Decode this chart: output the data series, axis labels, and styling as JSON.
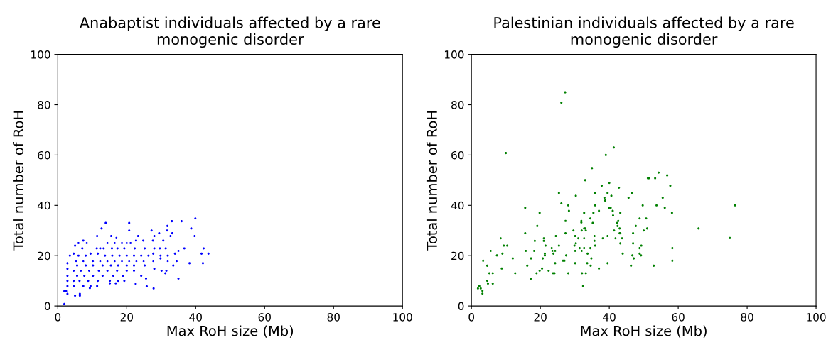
{
  "chart_data": [
    {
      "type": "scatter",
      "title": "Anabaptist individuals affected by a rare\nmonogenic disorder",
      "xlabel": "Max RoH size (Mb)",
      "ylabel": "Total number of RoH",
      "xlim": [
        0,
        100
      ],
      "ylim": [
        0,
        100
      ],
      "xticks": [
        0,
        20,
        40,
        60,
        80,
        100
      ],
      "yticks": [
        0,
        20,
        40,
        60,
        80,
        100
      ],
      "grid": false,
      "marker": "circle",
      "series": [
        {
          "color": "#0000ff",
          "x": [
            39.9,
            35.9,
            33.1,
            13.9,
            20.7,
            31.8,
            38.7,
            12.7,
            20.7,
            27.2,
            31.7,
            29.4,
            39.7,
            11.4,
            23.3,
            28.0,
            32.7,
            15.5,
            17.0,
            7.4,
            33.2,
            5.0,
            6.0,
            8.4,
            14.4,
            16.5,
            18.6,
            20.0,
            21.1,
            22.7,
            24.8,
            27.6,
            30.6,
            7.1,
            11.3,
            12.3,
            13.3,
            15.7,
            17.3,
            19.3,
            22.3,
            25.2,
            28.0,
            29.6,
            31.3,
            36.7,
            42.3,
            35.0,
            41.7,
            43.7,
            3.5,
            4.6,
            6.0,
            8.1,
            9.5,
            11.6,
            13.7,
            15.8,
            17.9,
            20.0,
            22.1,
            24.2,
            26.3,
            27.7,
            29.8,
            31.9,
            34.0,
            2.8,
            5.3,
            7.4,
            10.2,
            12.3,
            14.4,
            16.5,
            18.6,
            20.7,
            22.8,
            24.9,
            27.7,
            29.8,
            31.9,
            34.5,
            38.2,
            42.1,
            5.6,
            8.1,
            10.2,
            13.0,
            15.4,
            17.5,
            20.0,
            22.1,
            25.2,
            33.5,
            2.8,
            4.6,
            6.7,
            9.1,
            11.9,
            14.4,
            17.2,
            20.0,
            22.1,
            28.0,
            30.1,
            31.5,
            2.8,
            5.6,
            7.7,
            10.2,
            13.0,
            16.1,
            18.9,
            24.2,
            25.6,
            31.2,
            2.8,
            4.6,
            6.3,
            8.8,
            11.6,
            15.1,
            17.5,
            19.3,
            35.0,
            2.8,
            4.6,
            7.4,
            9.5,
            15.1,
            16.8,
            22.6,
            11.4,
            25.8,
            27.8,
            9.3,
            1.9,
            2.4,
            2.8,
            5.0,
            6.4,
            6.4,
            1.9
          ],
          "values": [
            34.8,
            33.7,
            33.7,
            33.0,
            33.0,
            31.8,
            30.8,
            30.8,
            30.0,
            30.0,
            30.0,
            28.9,
            27.8,
            27.8,
            27.8,
            27.8,
            27.8,
            27.8,
            27.0,
            26.0,
            28.9,
            24.0,
            25.0,
            25.0,
            25.0,
            25.0,
            25.0,
            25.0,
            25.0,
            26.0,
            26.0,
            26.0,
            26.0,
            22.9,
            22.9,
            22.9,
            22.9,
            22.9,
            22.9,
            22.9,
            22.9,
            22.9,
            22.9,
            22.9,
            22.9,
            22.9,
            22.9,
            21.9,
            20.8,
            20.8,
            20.0,
            20.8,
            20.0,
            20.0,
            20.8,
            20.8,
            20.0,
            20.0,
            20.0,
            20.0,
            20.0,
            20.0,
            20.0,
            20.8,
            20.0,
            20.0,
            20.8,
            17.0,
            17.9,
            17.9,
            17.9,
            17.9,
            17.9,
            17.9,
            17.9,
            17.9,
            17.9,
            17.9,
            17.9,
            18.9,
            17.9,
            17.9,
            17.0,
            17.0,
            16.1,
            16.1,
            16.1,
            16.1,
            16.1,
            16.1,
            16.1,
            16.1,
            16.1,
            16.1,
            14.8,
            14.0,
            14.0,
            14.0,
            14.0,
            14.0,
            14.0,
            14.0,
            14.0,
            14.8,
            14.0,
            14.0,
            12.0,
            12.0,
            12.0,
            12.0,
            12.0,
            12.0,
            12.0,
            12.0,
            10.9,
            13.0,
            10.0,
            10.0,
            10.0,
            10.0,
            10.0,
            10.0,
            10.0,
            10.0,
            10.9,
            7.9,
            7.9,
            7.9,
            7.9,
            9.0,
            9.0,
            8.8,
            7.9,
            7.8,
            7.0,
            7.1,
            5.9,
            5.9,
            4.8,
            4.1,
            4.8,
            4.1,
            0.8
          ]
        }
      ]
    },
    {
      "type": "scatter",
      "title": "Palestinian individuals affected by a rare\nmonogenic disorder",
      "xlabel": "Max RoH size (Mb)",
      "ylabel": "Total number of RoH",
      "xlim": [
        0,
        100
      ],
      "ylim": [
        0,
        100
      ],
      "xticks": [
        0,
        20,
        40,
        60,
        80,
        100
      ],
      "yticks": [
        0,
        20,
        40,
        60,
        80,
        100
      ],
      "grid": false,
      "marker": "circle",
      "series": [
        {
          "color": "#008000",
          "x": [
            27.2,
            26.1,
            10.0,
            41.3,
            39.0,
            35.0,
            33.0,
            54.3,
            56.8,
            51.2,
            51.5,
            53.3,
            40.0,
            37.8,
            42.8,
            57.7,
            25.4,
            35.9,
            39.5,
            46.5,
            30.3,
            40.6,
            38.6,
            38.8,
            45.6,
            55.5,
            26.1,
            28.1,
            35.9,
            49.7,
            53.7,
            65.9,
            15.6,
            39.9,
            40.4,
            56.1,
            28.3,
            37.0,
            41.0,
            19.8,
            32.7,
            35.4,
            43.2,
            58.2,
            41.1,
            34.5,
            48.8,
            50.7,
            27.3,
            31.9,
            31.9,
            42.6,
            35.2,
            42.3,
            19.1,
            42.4,
            47.7,
            32.7,
            33.0,
            43.0,
            51.0,
            29.6,
            32.0,
            33.2,
            41.4,
            50.0,
            15.6,
            27.3,
            43.0,
            43.2,
            46.9,
            24.5,
            30.1,
            35.7,
            39.5,
            8.5,
            21.0,
            31.0,
            32.7,
            38.1,
            41.8,
            43.7,
            18.4,
            21.0,
            35.7,
            30.3,
            43.2,
            46.9,
            9.4,
            10.4,
            21.5,
            25.4,
            29.9,
            35.9,
            49.3,
            23.3,
            31.4,
            32.7,
            34.5,
            48.8,
            58.3,
            5.6,
            15.8,
            18.2,
            23.5,
            24.3,
            30.1,
            32.0,
            43.9,
            9.0,
            21.3,
            21.3,
            23.8,
            33.7,
            48.8,
            49.2,
            7.4,
            27.5,
            46.7,
            12.0,
            17.3,
            20.7,
            34.8,
            47.1,
            3.4,
            26.6,
            27.0,
            58.3,
            30.1,
            33.6,
            39.5,
            24.3,
            4.6,
            16.2,
            34.6,
            46.3,
            52.9,
            8.8,
            20.5,
            37.0,
            19.8,
            22.4,
            5.2,
            6.2,
            12.7,
            18.9,
            23.7,
            24.1,
            28.1,
            32.1,
            33.2,
            17.2,
            4.6,
            4.8,
            6.2,
            32.4,
            2.3,
            1.9,
            2.7,
            3.2,
            3.2,
            75.0,
            76.5
          ],
          "values": [
            84.9,
            80.8,
            60.8,
            63.0,
            60.0,
            54.8,
            50.0,
            53.0,
            51.9,
            50.8,
            50.8,
            50.8,
            48.9,
            47.8,
            47.0,
            47.8,
            44.9,
            44.9,
            44.9,
            44.9,
            43.8,
            43.8,
            43.0,
            41.9,
            43.0,
            43.0,
            40.8,
            40.0,
            40.0,
            40.0,
            40.0,
            30.8,
            39.0,
            39.0,
            39.0,
            39.0,
            37.8,
            37.8,
            37.8,
            37.0,
            37.0,
            37.0,
            37.0,
            37.0,
            36.0,
            34.8,
            34.8,
            34.8,
            33.8,
            33.8,
            33.2,
            33.8,
            33.0,
            33.0,
            31.8,
            31.8,
            31.8,
            30.8,
            30.8,
            30.8,
            30.8,
            30.0,
            30.0,
            30.0,
            30.0,
            30.0,
            28.9,
            28.9,
            28.9,
            28.9,
            28.9,
            27.8,
            27.8,
            27.8,
            27.8,
            26.9,
            26.9,
            26.9,
            26.9,
            26.9,
            26.9,
            26.9,
            25.9,
            25.9,
            25.9,
            24.9,
            24.9,
            24.9,
            24.0,
            24.0,
            24.0,
            24.0,
            24.0,
            24.0,
            24.0,
            23.0,
            23.0,
            23.0,
            23.0,
            23.0,
            23.0,
            21.9,
            21.9,
            21.9,
            21.9,
            21.9,
            21.9,
            21.9,
            20.8,
            20.8,
            20.8,
            20.1,
            20.8,
            20.8,
            20.8,
            20.1,
            20.1,
            20.1,
            20.1,
            18.9,
            18.9,
            18.9,
            18.9,
            18.9,
            18.0,
            18.0,
            18.0,
            18.0,
            17.0,
            17.0,
            17.0,
            17.0,
            16.0,
            16.0,
            16.0,
            16.0,
            16.0,
            14.9,
            14.9,
            14.9,
            14.0,
            14.0,
            13.0,
            13.0,
            13.0,
            13.0,
            13.0,
            13.0,
            13.0,
            13.0,
            13.0,
            10.8,
            10.0,
            8.9,
            8.9,
            7.9,
            7.9,
            7.0,
            7.0,
            6.0,
            4.9,
            27.0,
            40.0
          ]
        }
      ]
    }
  ]
}
